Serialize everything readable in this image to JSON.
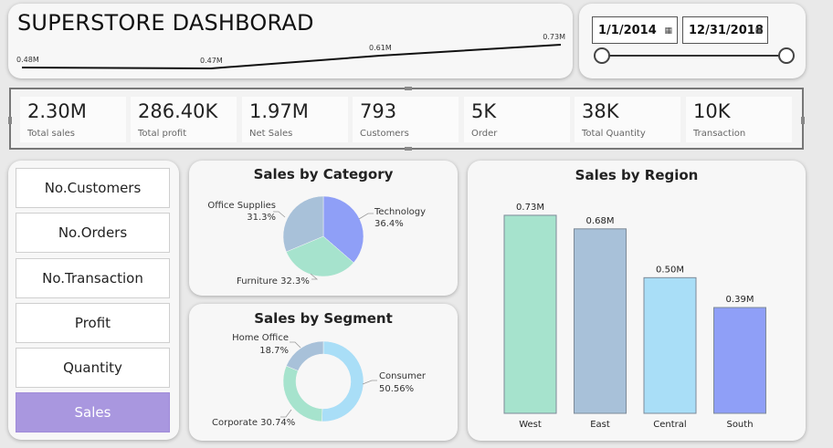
{
  "header": {
    "title": "SUPERSTORE DASHBORAD",
    "trend_labels": [
      "0.48M",
      "0.47M",
      "0.61M",
      "0.73M"
    ]
  },
  "date_filter": {
    "start": "1/1/2014",
    "end": "12/31/2018",
    "calendar_icon": "calendar-icon"
  },
  "kpis": [
    {
      "value": "2.30M",
      "label": "Total sales"
    },
    {
      "value": "286.40K",
      "label": "Total profit"
    },
    {
      "value": "1.97M",
      "label": "Net Sales"
    },
    {
      "value": "793",
      "label": "Customers"
    },
    {
      "value": "5K",
      "label": "Order"
    },
    {
      "value": "38K",
      "label": "Total Quantity"
    },
    {
      "value": "10K",
      "label": "Transaction"
    }
  ],
  "nav_buttons": [
    {
      "label": "No.Customers",
      "active": false
    },
    {
      "label": "No.Orders",
      "active": false
    },
    {
      "label": "No.Transaction",
      "active": false
    },
    {
      "label": "Profit",
      "active": false
    },
    {
      "label": "Quantity",
      "active": false
    },
    {
      "label": "Sales",
      "active": true
    }
  ],
  "colors": {
    "accent_button": "#a997df",
    "technology": "#8f9ff7",
    "furniture": "#a6e3cd",
    "office_supplies": "#a8c1d9",
    "west": "#a6e3cd",
    "east": "#a8c1d9",
    "central": "#a9def7",
    "south": "#8f9ff7"
  },
  "chart_data": [
    {
      "type": "pie",
      "title": "Sales by Category",
      "categories": [
        "Technology",
        "Furniture",
        "Office Supplies"
      ],
      "values": [
        36.4,
        32.3,
        31.3
      ],
      "labels": [
        "36.4%",
        "32.3%",
        "31.3%"
      ]
    },
    {
      "type": "pie",
      "title": "Sales by Segment",
      "donut": true,
      "categories": [
        "Consumer",
        "Corporate",
        "Home Office"
      ],
      "values": [
        50.56,
        30.74,
        18.7
      ],
      "labels": [
        "50.56%",
        "30.74%",
        "18.7%"
      ]
    },
    {
      "type": "bar",
      "title": "Sales by Region",
      "categories": [
        "West",
        "East",
        "Central",
        "South"
      ],
      "values": [
        0.73,
        0.68,
        0.5,
        0.39
      ],
      "labels": [
        "0.73M",
        "0.68M",
        "0.50M",
        "0.39M"
      ],
      "ylim": [
        0,
        0.75
      ]
    },
    {
      "type": "line",
      "title": "",
      "values": [
        0.48,
        0.47,
        0.61,
        0.73
      ],
      "labels": [
        "0.48M",
        "0.47M",
        "0.61M",
        "0.73M"
      ]
    }
  ]
}
